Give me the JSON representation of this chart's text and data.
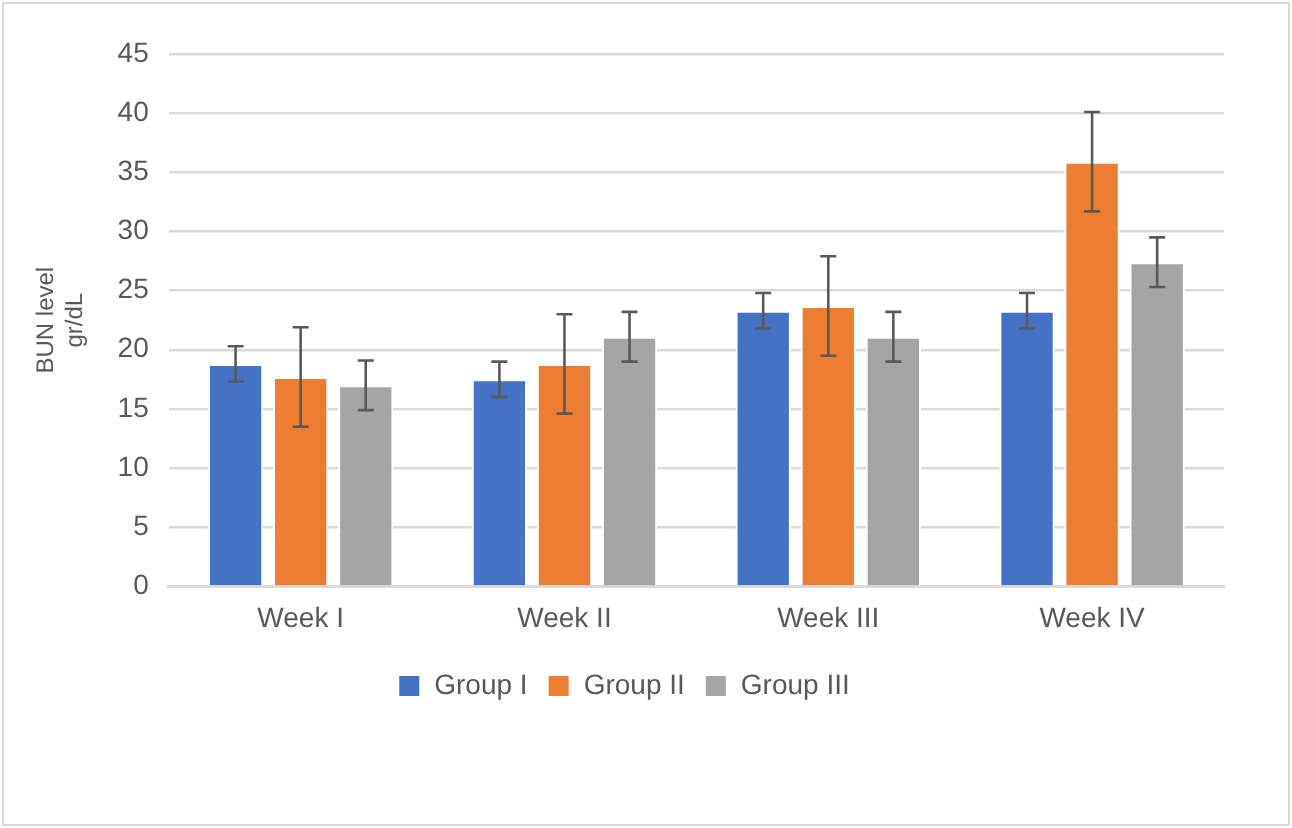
{
  "chart_data": {
    "type": "bar",
    "ylabel": "BUN level gr/dL",
    "categories": [
      "Week I",
      "Week II",
      "Week III",
      "Week IV"
    ],
    "series": [
      {
        "name": "Group I",
        "color": "#4472c4",
        "values": [
          18.8,
          17.5,
          23.3,
          23.3
        ],
        "errors": [
          1.5,
          1.5,
          1.5,
          1.5
        ]
      },
      {
        "name": "Group II",
        "color": "#ed7d31",
        "values": [
          17.7,
          18.8,
          23.7,
          35.9
        ],
        "errors": [
          4.2,
          4.2,
          4.2,
          4.2
        ]
      },
      {
        "name": "Group III",
        "color": "#a5a5a5",
        "values": [
          17.0,
          21.1,
          21.1,
          27.4
        ],
        "errors": [
          2.1,
          2.1,
          2.1,
          2.1
        ]
      }
    ],
    "ylim": [
      0,
      45
    ],
    "yticks": [
      0,
      5,
      10,
      15,
      20,
      25,
      30,
      35,
      40,
      45
    ],
    "grid": "y",
    "legend": "bottom"
  }
}
